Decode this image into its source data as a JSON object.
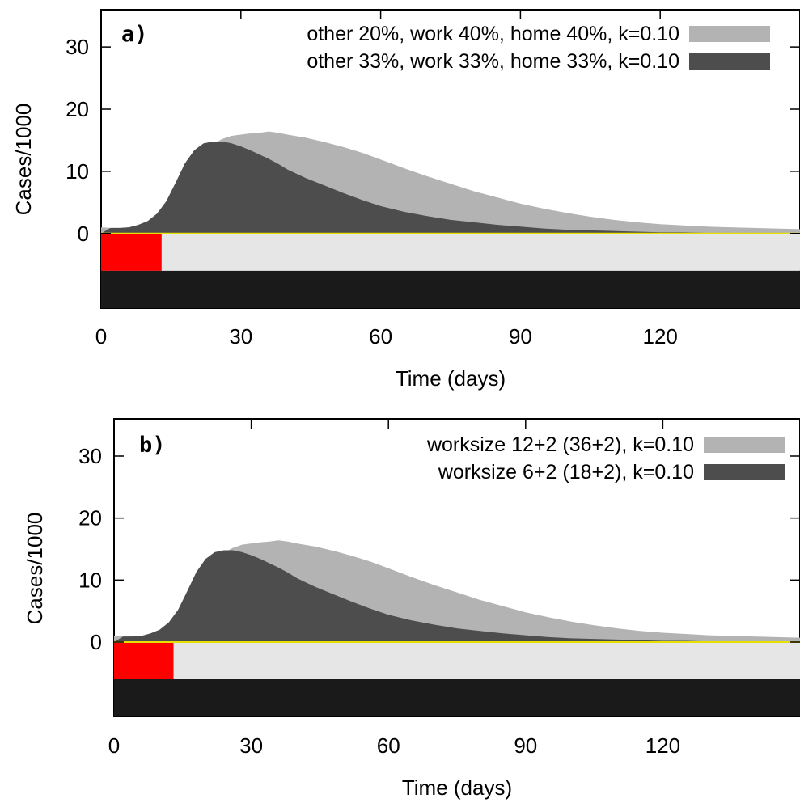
{
  "chart_data": [
    {
      "type": "area",
      "panel_label": "a)",
      "xlabel": "Time (days)",
      "ylabel": "Cases/1000",
      "xlim": [
        0,
        150
      ],
      "ylim": [
        -12,
        36
      ],
      "xticks": [
        0,
        30,
        60,
        90,
        120
      ],
      "yticks": [
        0,
        10,
        20,
        30
      ],
      "legend_position": "top-right",
      "band_segments": [
        {
          "from": 0,
          "to": 13,
          "color": "#ff0000"
        },
        {
          "from": 13,
          "to": 150,
          "color": "#e6e6e6"
        }
      ],
      "bottom_band_color": "#1a1a1a",
      "baseline_color": "#e8e000",
      "series": [
        {
          "name": "other 20%, work 40%, home 40%, k=0.10",
          "color": "#b3b3b3",
          "x": [
            0,
            2,
            4,
            6,
            8,
            10,
            12,
            14,
            16,
            18,
            20,
            22,
            24,
            26,
            28,
            30,
            32,
            34,
            36,
            38,
            40,
            44,
            48,
            52,
            56,
            60,
            65,
            70,
            75,
            80,
            85,
            90,
            95,
            100,
            105,
            110,
            115,
            120,
            125,
            130,
            135,
            140,
            145,
            150
          ],
          "y": [
            1.0,
            0.9,
            0.9,
            1.0,
            1.3,
            1.8,
            2.7,
            4.2,
            6.5,
            9.0,
            11.3,
            13.1,
            14.4,
            15.2,
            15.7,
            15.9,
            16.1,
            16.2,
            16.4,
            16.2,
            15.9,
            15.4,
            14.7,
            13.9,
            13.0,
            11.9,
            10.5,
            9.2,
            8.0,
            6.8,
            5.8,
            4.8,
            4.0,
            3.3,
            2.7,
            2.2,
            1.8,
            1.5,
            1.3,
            1.1,
            1.0,
            0.9,
            0.8,
            0.7
          ]
        },
        {
          "name": "other 33%, work 33%, home 33%, k=0.10",
          "color": "#4d4d4d",
          "x": [
            0,
            2,
            4,
            6,
            8,
            10,
            12,
            14,
            16,
            18,
            20,
            22,
            24,
            26,
            28,
            30,
            32,
            34,
            36,
            38,
            40,
            44,
            48,
            52,
            56,
            60,
            65,
            70,
            75,
            80,
            85,
            90,
            95,
            100,
            105,
            110,
            115,
            120,
            125,
            130,
            135,
            140,
            145,
            150
          ],
          "y": [
            0,
            0.9,
            0.9,
            1.0,
            1.4,
            2.0,
            3.2,
            5.2,
            8.2,
            11.3,
            13.4,
            14.5,
            14.8,
            14.8,
            14.5,
            14.0,
            13.4,
            12.7,
            12.0,
            11.2,
            10.3,
            8.9,
            7.7,
            6.5,
            5.4,
            4.4,
            3.5,
            2.8,
            2.2,
            1.8,
            1.4,
            1.1,
            0.8,
            0.6,
            0.5,
            0.4,
            0.3,
            0.2,
            0.2,
            0.1,
            0.1,
            0.1,
            0.0,
            0.0
          ]
        }
      ]
    },
    {
      "type": "area",
      "panel_label": "b)",
      "xlabel": "Time (days)",
      "ylabel": "Cases/1000",
      "xlim": [
        0,
        150
      ],
      "ylim": [
        -12,
        36
      ],
      "xticks": [
        0,
        30,
        60,
        90,
        120
      ],
      "yticks": [
        0,
        10,
        20,
        30
      ],
      "legend_position": "top-right",
      "band_segments": [
        {
          "from": 0,
          "to": 13,
          "color": "#ff0000"
        },
        {
          "from": 13,
          "to": 150,
          "color": "#e6e6e6"
        }
      ],
      "bottom_band_color": "#1a1a1a",
      "baseline_color": "#e8e000",
      "series": [
        {
          "name": "worksize 12+2 (36+2), k=0.10",
          "color": "#b3b3b3",
          "x": [
            0,
            2,
            4,
            6,
            8,
            10,
            12,
            14,
            16,
            18,
            20,
            22,
            24,
            26,
            28,
            30,
            32,
            34,
            36,
            38,
            40,
            44,
            48,
            52,
            56,
            60,
            65,
            70,
            75,
            80,
            85,
            90,
            95,
            100,
            105,
            110,
            115,
            120,
            125,
            130,
            135,
            140,
            145,
            150
          ],
          "y": [
            1.0,
            0.9,
            0.9,
            1.0,
            1.3,
            1.8,
            2.7,
            4.2,
            6.5,
            9.0,
            11.3,
            13.1,
            14.4,
            15.2,
            15.7,
            15.9,
            16.1,
            16.2,
            16.4,
            16.2,
            15.9,
            15.4,
            14.7,
            13.9,
            13.0,
            11.9,
            10.5,
            9.2,
            8.0,
            6.8,
            5.8,
            4.8,
            4.0,
            3.3,
            2.7,
            2.2,
            1.8,
            1.5,
            1.3,
            1.1,
            1.0,
            0.9,
            0.8,
            0.7
          ]
        },
        {
          "name": "worksize 6+2 (18+2), k=0.10",
          "color": "#4d4d4d",
          "x": [
            0,
            2,
            4,
            6,
            8,
            10,
            12,
            14,
            16,
            18,
            20,
            22,
            24,
            26,
            28,
            30,
            32,
            34,
            36,
            38,
            40,
            44,
            48,
            52,
            56,
            60,
            65,
            70,
            75,
            80,
            85,
            90,
            95,
            100,
            105,
            110,
            115,
            120,
            125,
            130,
            135,
            140,
            145,
            150
          ],
          "y": [
            0,
            0.9,
            0.9,
            1.0,
            1.4,
            2.0,
            3.2,
            5.2,
            8.2,
            11.3,
            13.4,
            14.5,
            14.8,
            14.8,
            14.5,
            14.0,
            13.4,
            12.7,
            12.0,
            11.2,
            10.3,
            8.9,
            7.7,
            6.5,
            5.4,
            4.4,
            3.5,
            2.8,
            2.2,
            1.8,
            1.4,
            1.1,
            0.8,
            0.6,
            0.5,
            0.4,
            0.3,
            0.2,
            0.2,
            0.1,
            0.1,
            0.1,
            0.0,
            0.0
          ]
        }
      ]
    }
  ]
}
